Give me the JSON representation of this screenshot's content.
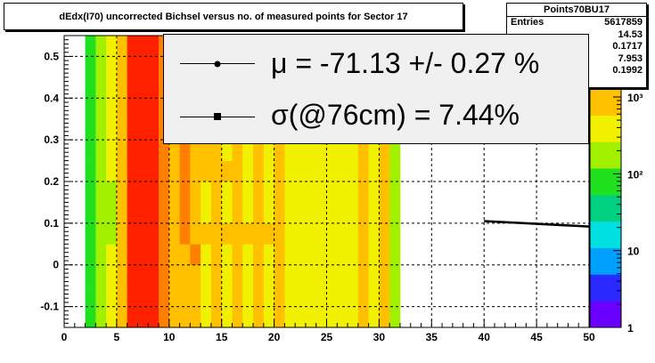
{
  "title": "dEdx(I70) uncorrected Bichsel versus no. of measured points for Sector 17",
  "stats": {
    "name": "Points70BU17",
    "rows": [
      {
        "label": "Entries",
        "value": "5617859"
      },
      {
        "label": "",
        "value": "14.53"
      },
      {
        "label": "",
        "value": "0.1717"
      },
      {
        "label": "",
        "value": "7.953"
      },
      {
        "label": "",
        "value": "0.1992"
      }
    ]
  },
  "legend": {
    "mu_text": "μ  = -71.13 +/-  0.27 %",
    "sigma_text": "σ(@76cm) =  7.44%"
  },
  "chart_data": {
    "type": "heatmap",
    "title": "dEdx(I70) uncorrected Bichsel versus no. of measured points for Sector 17",
    "xlim": [
      0,
      50
    ],
    "ylim": [
      -0.15,
      0.55
    ],
    "x_ticks": [
      0,
      5,
      10,
      15,
      20,
      25,
      30,
      35,
      40,
      45,
      50
    ],
    "y_ticks": [
      -0.1,
      0,
      0.1,
      0.2,
      0.3,
      0.4,
      0.5
    ],
    "y_tick_labels": [
      "-0.1",
      "0",
      "0.1",
      "0.2",
      "0.3",
      "0.4",
      "0.5"
    ],
    "grid": true,
    "z_scale": "log",
    "z_ticks": [
      1,
      10,
      100,
      1000
    ],
    "z_tick_labels": [
      "1",
      "10",
      "10²",
      "10³"
    ],
    "palette": [
      "#6a00ff",
      "#2a2aff",
      "#00a0ff",
      "#00e0e0",
      "#00d080",
      "#20e020",
      "#a0f000",
      "#f0f000",
      "#ffc000",
      "#ff8000",
      "#ff2000"
    ],
    "x_bin_start": 2,
    "x_bin_width": 1,
    "y_bins": [
      -0.15,
      -0.1,
      -0.05,
      0,
      0.05,
      0.1,
      0.15,
      0.2,
      0.25,
      0.3,
      0.35,
      0.4,
      0.45,
      0.5,
      0.55
    ],
    "columns": [
      [
        5,
        5,
        5,
        5,
        5,
        5,
        5,
        5,
        5,
        5,
        5,
        5,
        5,
        5
      ],
      [
        6,
        6,
        6,
        6,
        6,
        6,
        6,
        6,
        6,
        6,
        6,
        6,
        6,
        6
      ],
      [
        7,
        7,
        7,
        7,
        6,
        6,
        6,
        7,
        7,
        7,
        7,
        7,
        7,
        7
      ],
      [
        8,
        8,
        8,
        8,
        8,
        8,
        8,
        8,
        8,
        8,
        8,
        8,
        8,
        8
      ],
      [
        10,
        10,
        10,
        10,
        10,
        10,
        10,
        10,
        10,
        10,
        10,
        10,
        10,
        10
      ],
      [
        10,
        10,
        10,
        10,
        10,
        10,
        10,
        10,
        10,
        10,
        10,
        10,
        10,
        10
      ],
      [
        10,
        10,
        10,
        10,
        10,
        10,
        10,
        10,
        10,
        10,
        10,
        10,
        10,
        10
      ],
      [
        9,
        9,
        9,
        9,
        9,
        9,
        9,
        9,
        9,
        9,
        9,
        9,
        9,
        9
      ],
      [
        8,
        8,
        8,
        8,
        8,
        8,
        8,
        8,
        8,
        8,
        8,
        8,
        8,
        8
      ],
      [
        8,
        8,
        8,
        8,
        9,
        9,
        9,
        9,
        9,
        9,
        9,
        9,
        9,
        9
      ],
      [
        8,
        8,
        8,
        9,
        8,
        8,
        8,
        8,
        8,
        8,
        8,
        8,
        8,
        8
      ],
      [
        7,
        7,
        7,
        7,
        8,
        7,
        7,
        8,
        8,
        8,
        8,
        8,
        8,
        8
      ],
      [
        8,
        8,
        8,
        8,
        8,
        8,
        8,
        8,
        8,
        8,
        8,
        8,
        8,
        8
      ],
      [
        7,
        7,
        7,
        7,
        8,
        7,
        7,
        8,
        7,
        8,
        8,
        8,
        8,
        8
      ],
      [
        8,
        8,
        8,
        8,
        8,
        8,
        8,
        8,
        8,
        8,
        8,
        8,
        8,
        8
      ],
      [
        7,
        7,
        7,
        7,
        8,
        7,
        7,
        7,
        7,
        8,
        8,
        8,
        8,
        8
      ],
      [
        8,
        8,
        8,
        8,
        8,
        8,
        8,
        8,
        8,
        8,
        8,
        8,
        8,
        8
      ],
      [
        7,
        7,
        7,
        7,
        8,
        7,
        7,
        7,
        7,
        7,
        7,
        8,
        8,
        8
      ],
      [
        8,
        8,
        8,
        8,
        8,
        8,
        8,
        8,
        8,
        8,
        8,
        8,
        8,
        8
      ],
      [
        7,
        7,
        7,
        7,
        7,
        7,
        7,
        7,
        7,
        7,
        8,
        8,
        8,
        8
      ],
      [
        7,
        7,
        7,
        7,
        7,
        7,
        7,
        7,
        7,
        7,
        7,
        7,
        7,
        7
      ],
      [
        7,
        7,
        7,
        7,
        7,
        7,
        7,
        7,
        7,
        7,
        8,
        8,
        8,
        8
      ],
      [
        7,
        7,
        7,
        7,
        7,
        7,
        7,
        7,
        7,
        7,
        7,
        7,
        7,
        7
      ],
      [
        7,
        7,
        7,
        7,
        7,
        7,
        7,
        7,
        7,
        7,
        8,
        8,
        8,
        8
      ],
      [
        7,
        7,
        7,
        7,
        7,
        7,
        7,
        7,
        7,
        7,
        7,
        7,
        7,
        7
      ],
      [
        7,
        7,
        7,
        7,
        7,
        7,
        7,
        7,
        7,
        7,
        7,
        8,
        8,
        8
      ],
      [
        8,
        8,
        8,
        8,
        8,
        8,
        8,
        8,
        8,
        8,
        8,
        8,
        8,
        8
      ],
      [
        7,
        7,
        7,
        7,
        7,
        7,
        7,
        7,
        7,
        7,
        8,
        8,
        8,
        8
      ],
      [
        8,
        8,
        8,
        8,
        8,
        8,
        8,
        8,
        8,
        8,
        8,
        8,
        8,
        8
      ],
      [
        6,
        6,
        6,
        6,
        6,
        6,
        6,
        6,
        6,
        6,
        6,
        6,
        6,
        6
      ]
    ],
    "fit_line": {
      "x": [
        40,
        50
      ],
      "y": [
        0.105,
        0.092
      ]
    }
  }
}
